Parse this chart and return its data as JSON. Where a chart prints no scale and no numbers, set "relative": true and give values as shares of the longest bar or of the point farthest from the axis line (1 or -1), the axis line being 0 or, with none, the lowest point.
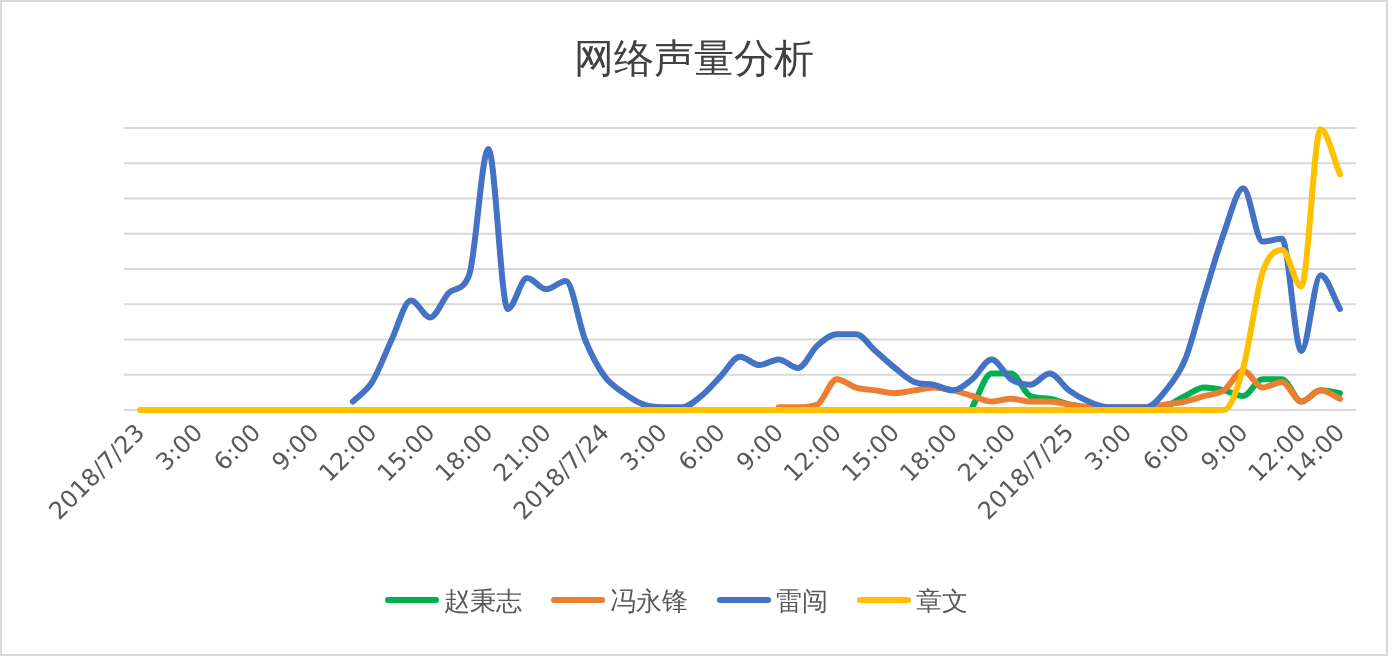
{
  "chart_data": {
    "type": "line",
    "title": "网络声量分析",
    "relative": true,
    "grid": "y",
    "legend": "bottom",
    "categories": [
      "2018/7/23",
      null,
      null,
      "3:00",
      null,
      null,
      "6:00",
      null,
      null,
      "9:00",
      null,
      null,
      "12:00",
      null,
      null,
      "15:00",
      null,
      null,
      "18:00",
      null,
      null,
      "21:00",
      null,
      null,
      "2018/7/24",
      null,
      null,
      "3:00",
      null,
      null,
      "6:00",
      null,
      null,
      "9:00",
      null,
      null,
      "12:00",
      null,
      null,
      "15:00",
      null,
      null,
      "18:00",
      null,
      null,
      "21:00",
      null,
      null,
      "2018/7/25",
      null,
      null,
      "3:00",
      null,
      null,
      "6:00",
      null,
      null,
      "9:00",
      null,
      null,
      "12:00",
      null,
      "14:00"
    ],
    "series": [
      {
        "name": "赵秉志",
        "color": "#00b050",
        "values": [
          null,
          null,
          null,
          null,
          null,
          null,
          null,
          null,
          null,
          null,
          null,
          null,
          null,
          null,
          null,
          null,
          null,
          null,
          null,
          null,
          null,
          null,
          null,
          null,
          null,
          null,
          null,
          null,
          null,
          null,
          null,
          null,
          null,
          null,
          null,
          null,
          null,
          null,
          null,
          null,
          null,
          null,
          null,
          0.01,
          0.13,
          0.13,
          0.05,
          0.04,
          0.02,
          0.01,
          null,
          null,
          null,
          0.01,
          0.05,
          0.08,
          0.07,
          0.05,
          0.11,
          0.11,
          0.03,
          0.07,
          0.06
        ]
      },
      {
        "name": "冯永锋",
        "color": "#ed7d31",
        "values": [
          null,
          null,
          null,
          null,
          null,
          null,
          null,
          null,
          null,
          null,
          null,
          null,
          null,
          null,
          null,
          null,
          null,
          null,
          null,
          null,
          null,
          null,
          null,
          null,
          null,
          null,
          null,
          null,
          null,
          null,
          null,
          null,
          null,
          0.01,
          0.01,
          0.02,
          0.11,
          0.08,
          0.07,
          0.06,
          0.07,
          0.08,
          0.07,
          0.05,
          0.03,
          0.04,
          0.03,
          0.03,
          0.02,
          0.01,
          0.01,
          0.01,
          0.01,
          0.02,
          0.03,
          0.05,
          0.07,
          0.14,
          0.08,
          0.1,
          0.03,
          0.07,
          0.04
        ]
      },
      {
        "name": "雷闯",
        "color": "#4472c4",
        "values": [
          null,
          null,
          null,
          null,
          null,
          null,
          null,
          null,
          null,
          null,
          null,
          0.03,
          0.1,
          0.25,
          0.39,
          0.33,
          0.42,
          0.48,
          0.93,
          0.36,
          0.47,
          0.43,
          0.46,
          0.25,
          0.12,
          0.06,
          0.02,
          0.01,
          0.01,
          0.05,
          0.12,
          0.19,
          0.16,
          0.18,
          0.15,
          0.23,
          0.27,
          0.27,
          0.21,
          0.15,
          0.1,
          0.09,
          0.07,
          0.11,
          0.18,
          0.11,
          0.09,
          0.13,
          0.07,
          0.03,
          0.01,
          0.01,
          0.01,
          0.07,
          0.18,
          0.41,
          0.63,
          0.79,
          0.6,
          0.61,
          0.21,
          0.48,
          0.36
        ]
      },
      {
        "name": "章文",
        "color": "#ffc000",
        "values": [
          0,
          0,
          0,
          0,
          0,
          0,
          0,
          0,
          0,
          0,
          0,
          0,
          0,
          0,
          0,
          0,
          0,
          0,
          0,
          0,
          0,
          0,
          0,
          0,
          0,
          0,
          0,
          0,
          0,
          0,
          0,
          0,
          0,
          0,
          0,
          0,
          0,
          0,
          0,
          0,
          0,
          0,
          0,
          0,
          0,
          0,
          0,
          0,
          0,
          0,
          0,
          0,
          0,
          0,
          0,
          0,
          0,
          0.15,
          0.49,
          0.57,
          0.44,
          1,
          0.84
        ]
      }
    ]
  }
}
